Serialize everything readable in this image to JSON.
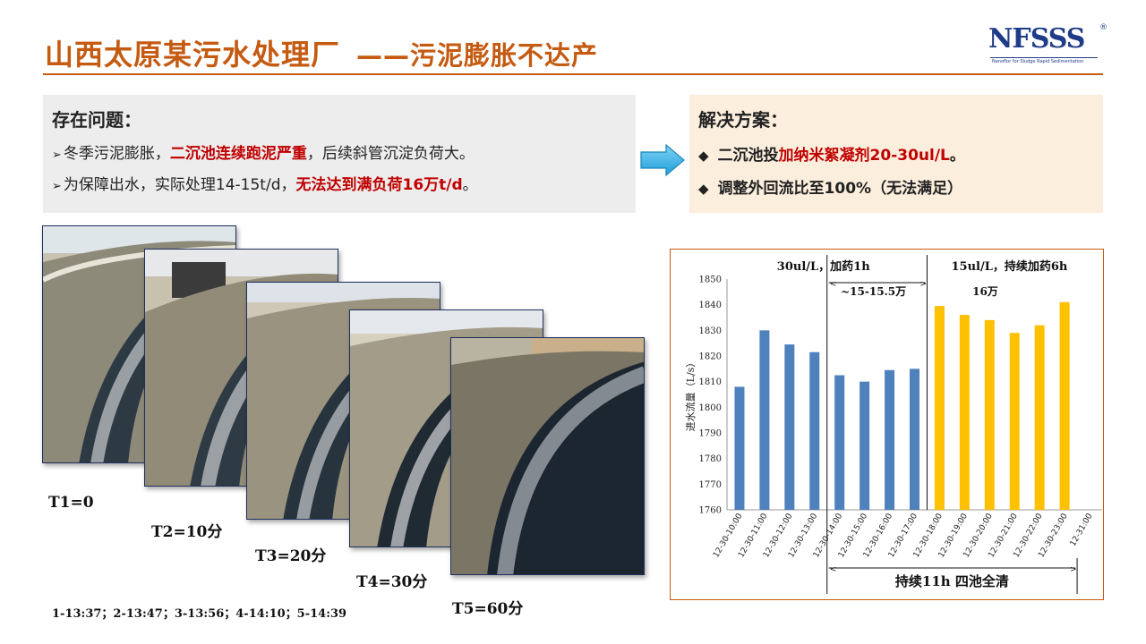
{
  "header": {
    "title": "山西太原某污水处理厂",
    "subtitle": "——污泥膨胀不达产"
  },
  "logo": {
    "text": "NFSSS",
    "registered": "®",
    "tagline": "Nanoflor for Sludge Rapid Sedimentation"
  },
  "problem": {
    "heading": "存在问题：",
    "line1": {
      "a": "冬季污泥膨胀，",
      "b": "二沉池连续跑泥严重",
      "c": "，后续斜管沉淀负荷大。"
    },
    "line2": {
      "a": "为保障出水，实际处理14-15t/d，",
      "b": "无法达到满负荷16万t/d",
      "c": "。"
    }
  },
  "solution": {
    "heading": "解决方案：",
    "line1": {
      "a": "二沉池投",
      "b": "加纳米絮凝剂20-30ul/L",
      "c": "。"
    },
    "line2": "调整外回流比至100%（无法满足）"
  },
  "photos": {
    "labels": [
      "T1=0",
      "T2=10分",
      "T3=20分",
      "T4=30分",
      "T5=60分"
    ],
    "times": "1-13:37；2-13:47；3-13:56；4-14:10；5-14:39"
  },
  "chart_data": {
    "type": "bar",
    "ylabel": "进水流量（L/s）",
    "ylim": [
      1760,
      1850
    ],
    "yticks": [
      1760,
      1770,
      1780,
      1790,
      1800,
      1810,
      1820,
      1830,
      1840,
      1850
    ],
    "categories": [
      "12-30-10:00",
      "12-30-11:00",
      "12-30-12:00",
      "12-30-13:00",
      "12-30-14:00",
      "12-30-15:00",
      "12-30-16:00",
      "12-30-17:00",
      "12-30-18:00",
      "12-30-19:00",
      "12-30-20:00",
      "12-30-21:00",
      "12-30-22:00",
      "12-30-23:00",
      "12-31:00"
    ],
    "values": [
      1808,
      1830,
      1824.5,
      1821.5,
      1812.5,
      1810,
      1814.5,
      1815,
      1839.5,
      1836,
      1834,
      1829,
      1832,
      1841,
      null
    ],
    "colors": {
      "blue": "#4f81bd",
      "yellow": "#ffc000"
    },
    "yellow_from_index": 8,
    "annotations": {
      "dose1": "30ul/L，加药1h",
      "dose2": "15ul/L，持续加药6h",
      "range1": "~15-15.5万",
      "range2": "16万",
      "bottom": "持续11h 四池全清"
    }
  }
}
